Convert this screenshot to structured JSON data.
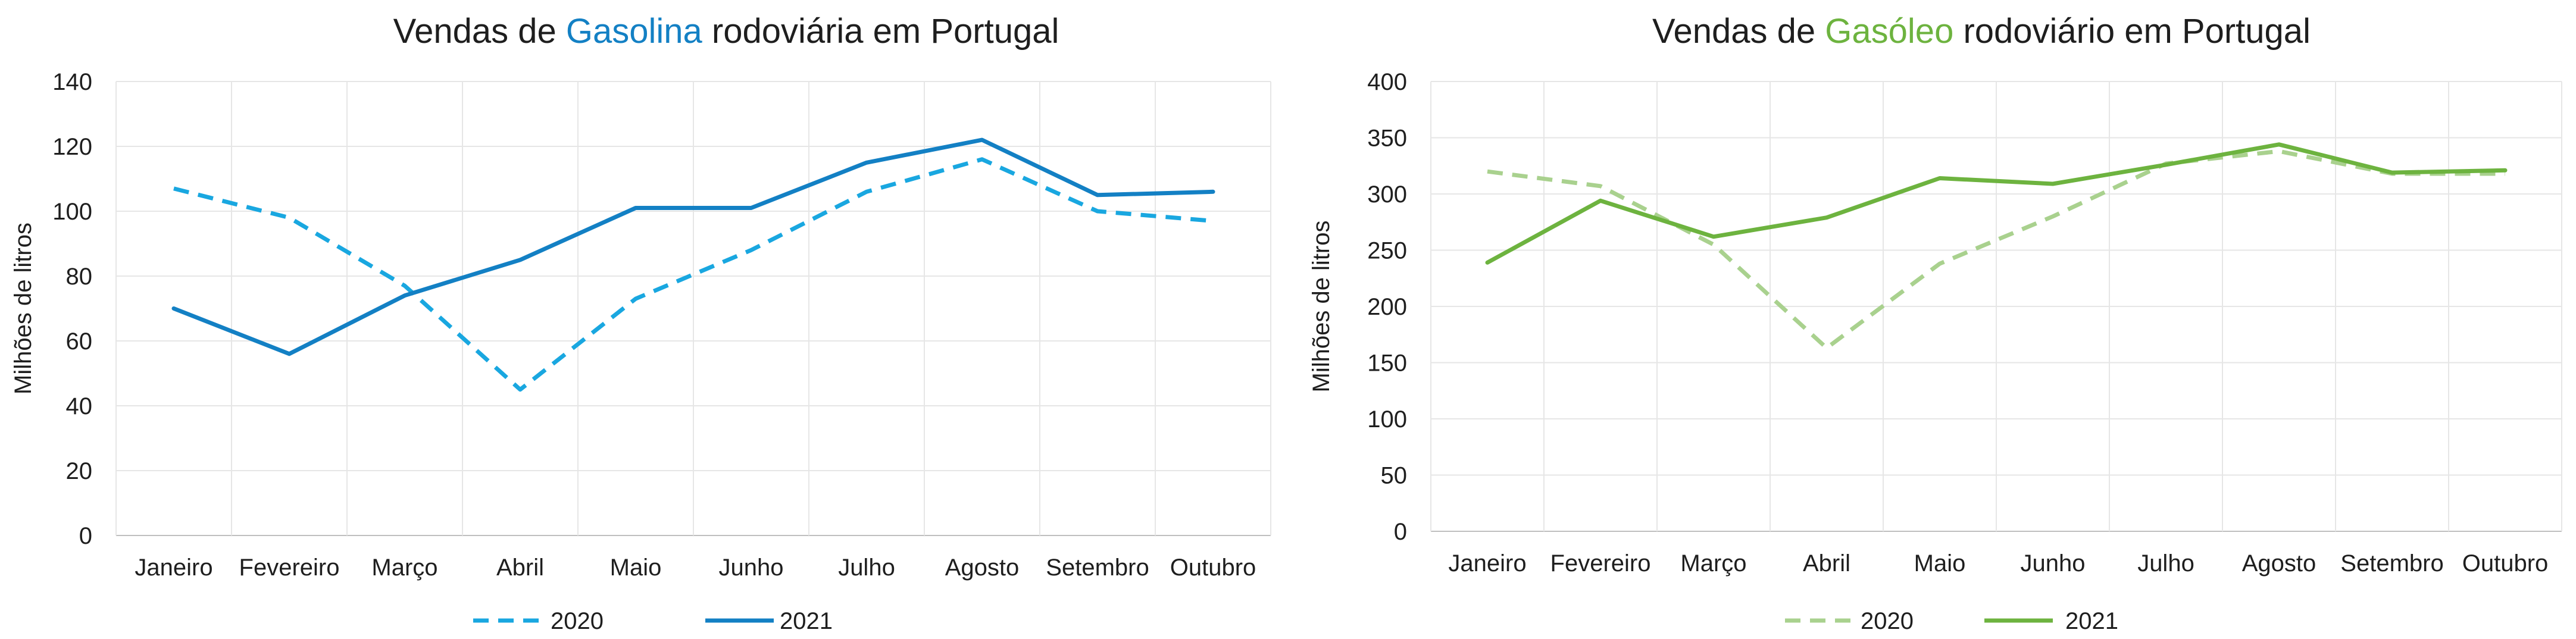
{
  "chart_data": [
    {
      "type": "line",
      "title_parts": [
        "Vendas de ",
        "Gasolina",
        " rodoviária em Portugal"
      ],
      "title_highlight_color": "#1380c4",
      "xlabel": "",
      "ylabel": "Milhões de litros",
      "categories": [
        "Janeiro",
        "Fevereiro",
        "Março",
        "Abril",
        "Maio",
        "Junho",
        "Julho",
        "Agosto",
        "Setembro",
        "Outubro"
      ],
      "ylim": [
        0,
        140
      ],
      "yticks": [
        0,
        20,
        40,
        60,
        80,
        100,
        120,
        140
      ],
      "grid": true,
      "legend_position": "bottom",
      "series": [
        {
          "name": "2020",
          "color": "#19a7e0",
          "dash": true,
          "values": [
            107,
            98,
            77,
            45,
            73,
            88,
            106,
            116,
            100,
            97
          ]
        },
        {
          "name": "2021",
          "color": "#1380c4",
          "dash": false,
          "values": [
            70,
            56,
            74,
            85,
            101,
            101,
            115,
            122,
            105,
            106
          ]
        }
      ]
    },
    {
      "type": "line",
      "title_parts": [
        "Vendas de ",
        "Gasóleo",
        " rodoviário em Portugal"
      ],
      "title_highlight_color": "#6db33f",
      "xlabel": "",
      "ylabel": "Milhões de litros",
      "categories": [
        "Janeiro",
        "Fevereiro",
        "Março",
        "Abril",
        "Maio",
        "Junho",
        "Julho",
        "Agosto",
        "Setembro",
        "Outubro"
      ],
      "ylim": [
        0,
        400
      ],
      "yticks": [
        0,
        50,
        100,
        150,
        200,
        250,
        300,
        350,
        400
      ],
      "grid": true,
      "legend_position": "bottom",
      "series": [
        {
          "name": "2020",
          "color": "#a9d18e",
          "dash": true,
          "values": [
            320,
            307,
            255,
            163,
            238,
            280,
            327,
            338,
            318,
            318
          ]
        },
        {
          "name": "2021",
          "color": "#6db33f",
          "dash": false,
          "values": [
            239,
            294,
            262,
            279,
            314,
            309,
            326,
            344,
            319,
            321
          ]
        }
      ]
    }
  ]
}
